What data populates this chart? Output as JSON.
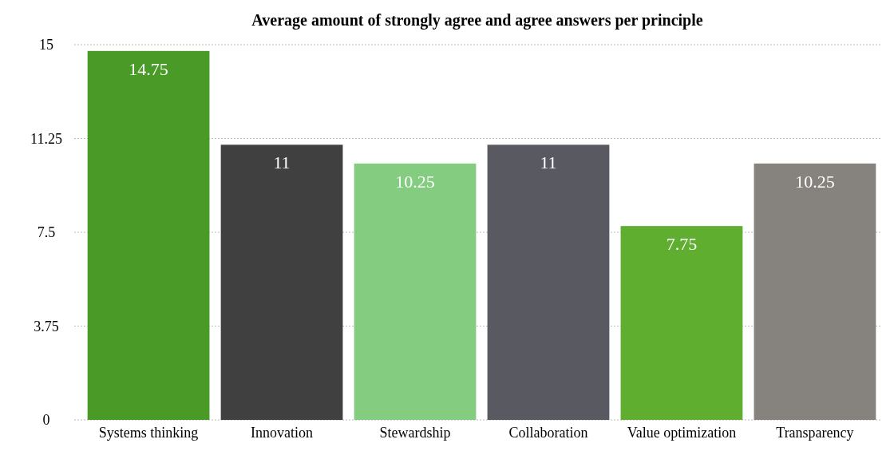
{
  "chart_data": {
    "type": "bar",
    "title": "Average amount of strongly agree and agree answers per principle",
    "categories": [
      "Systems thinking",
      "Innovation",
      "Stewardship",
      "Collaboration",
      "Value optimization",
      "Transparency"
    ],
    "values": [
      14.75,
      11,
      10.25,
      11,
      7.75,
      10.25
    ],
    "colors": [
      "#4a9a28",
      "#404040",
      "#84cc80",
      "#595962",
      "#5fae30",
      "#86837e"
    ],
    "ylim": [
      0,
      15
    ],
    "yticks": [
      0,
      3.75,
      7.5,
      11.25,
      15
    ],
    "grid": "y",
    "data_labels": true
  }
}
